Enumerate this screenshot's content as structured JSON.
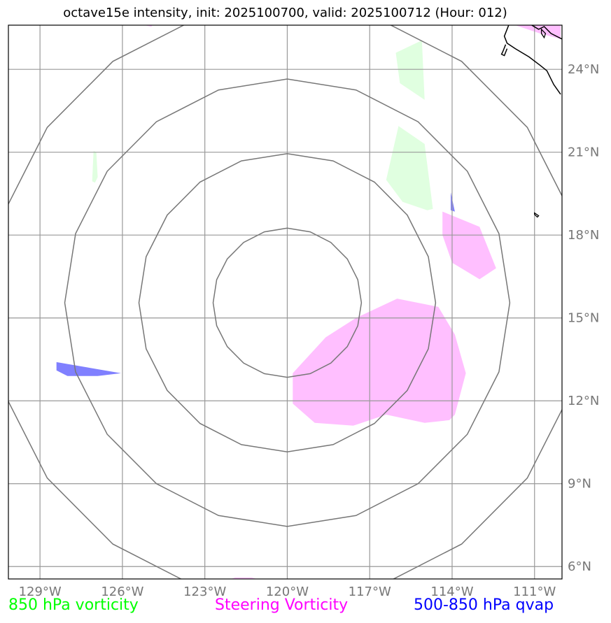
{
  "title": "octave15e intensity, init: 2025100700, valid: 2025100712 (Hour: 012)",
  "legend": {
    "vorticity_850": {
      "label": "850 hPa vorticity",
      "color": "#00ff00"
    },
    "steering": {
      "label": "Steering Vorticity",
      "color": "#ff00ff"
    },
    "qvap": {
      "label": "500-850 hPa qvap",
      "color": "#0000ff"
    }
  },
  "chart_data": {
    "type": "map",
    "projection": "PlateCarree",
    "extent": {
      "lon": [
        -130.15,
        -110.0
      ],
      "lat": [
        5.55,
        25.6
      ]
    },
    "x_ticks": [
      -129,
      -126,
      -123,
      -120,
      -117,
      -114,
      -111
    ],
    "x_tick_labels": [
      "129°W",
      "126°W",
      "123°W",
      "120°W",
      "117°W",
      "114°W",
      "111°W"
    ],
    "y_ticks": [
      6,
      9,
      12,
      15,
      18,
      21,
      24
    ],
    "y_tick_labels": [
      "6°N",
      "9°N",
      "12°N",
      "15°N",
      "18°N",
      "21°N",
      "24°N"
    ],
    "grid": true,
    "colors": {
      "grid": "#999999",
      "tick_label": "#777777",
      "range_ring": "#777777",
      "coast": "#000000",
      "vort850_fill": "#e0ffe0",
      "steering_fill": "#ffbfff",
      "qvap_fill": "#8080ff"
    },
    "storm_center": {
      "lon": -120.0,
      "lat": 15.55
    },
    "range_rings": [
      {
        "radius_deg": 2.7
      },
      {
        "radius_deg": 5.4
      },
      {
        "radius_deg": 8.1
      },
      {
        "radius_deg": 10.8
      }
    ],
    "vort850_regions": [
      [
        [
          -115.1,
          25.05
        ],
        [
          -116.05,
          24.6
        ],
        [
          -115.9,
          23.5
        ],
        [
          -115.0,
          22.9
        ],
        [
          -115.1,
          25.05
        ]
      ],
      [
        [
          -126.9,
          20.1
        ],
        [
          -127.0,
          19.9
        ],
        [
          -127.1,
          19.95
        ],
        [
          -127.05,
          21.05
        ],
        [
          -126.95,
          21.0
        ],
        [
          -126.9,
          20.1
        ]
      ],
      [
        [
          -115.95,
          21.95
        ],
        [
          -116.4,
          20.0
        ],
        [
          -115.8,
          19.2
        ],
        [
          -114.9,
          18.9
        ],
        [
          -114.7,
          18.95
        ],
        [
          -115.0,
          21.3
        ],
        [
          -115.95,
          21.95
        ]
      ]
    ],
    "steering_regions": [
      [
        [
          -114.35,
          18.85
        ],
        [
          -113.0,
          18.3
        ],
        [
          -112.4,
          16.8
        ],
        [
          -113.0,
          16.4
        ],
        [
          -114.0,
          17.0
        ],
        [
          -114.35,
          18.0
        ],
        [
          -114.35,
          18.85
        ]
      ],
      [
        [
          -116.0,
          15.7
        ],
        [
          -114.5,
          15.4
        ],
        [
          -113.9,
          14.4
        ],
        [
          -113.5,
          13.0
        ],
        [
          -113.9,
          11.5
        ],
        [
          -114.1,
          11.3
        ],
        [
          -115.0,
          11.2
        ],
        [
          -116.4,
          11.5
        ],
        [
          -117.6,
          11.1
        ],
        [
          -119.0,
          11.2
        ],
        [
          -119.8,
          11.9
        ],
        [
          -119.8,
          13.0
        ],
        [
          -118.6,
          14.3
        ],
        [
          -117.5,
          15.0
        ],
        [
          -116.0,
          15.7
        ]
      ],
      [
        [
          -125.2,
          25.6
        ],
        [
          -124.9,
          25.6
        ],
        [
          -124.95,
          25.55
        ],
        [
          -125.2,
          25.6
        ]
      ],
      [
        [
          -111.7,
          25.6
        ],
        [
          -110.05,
          25.6
        ],
        [
          -110.05,
          25.1
        ],
        [
          -110.8,
          25.3
        ],
        [
          -111.7,
          25.6
        ]
      ],
      [
        [
          -122.05,
          5.55
        ],
        [
          -121.1,
          5.55
        ],
        [
          -121.3,
          5.6
        ],
        [
          -121.9,
          5.6
        ],
        [
          -122.05,
          5.55
        ]
      ]
    ],
    "qvap_regions": [
      [
        [
          -128.4,
          13.4
        ],
        [
          -126.05,
          13.0
        ],
        [
          -126.9,
          12.9
        ],
        [
          -128.0,
          12.9
        ],
        [
          -128.4,
          13.1
        ],
        [
          -128.4,
          13.4
        ]
      ],
      [
        [
          -114.05,
          19.55
        ],
        [
          -113.9,
          18.85
        ],
        [
          -114.05,
          18.9
        ],
        [
          -114.05,
          19.55
        ]
      ]
    ],
    "coastlines": [
      [
        [
          -110.0,
          25.1
        ],
        [
          -110.4,
          25.3
        ],
        [
          -110.65,
          25.55
        ],
        [
          -110.85,
          25.45
        ],
        [
          -111.1,
          25.6
        ],
        [
          -111.3,
          25.7
        ]
      ],
      [
        [
          -110.05,
          23.1
        ],
        [
          -110.3,
          23.45
        ],
        [
          -110.55,
          23.95
        ],
        [
          -110.8,
          24.15
        ],
        [
          -111.2,
          24.45
        ],
        [
          -111.45,
          24.6
        ],
        [
          -111.7,
          24.75
        ],
        [
          -112.0,
          24.95
        ],
        [
          -112.1,
          25.2
        ],
        [
          -112.0,
          25.45
        ],
        [
          -111.9,
          25.7
        ]
      ],
      [
        [
          -112.05,
          24.9
        ],
        [
          -112.15,
          24.65
        ],
        [
          -112.2,
          24.55
        ],
        [
          -112.1,
          24.5
        ],
        [
          -112.0,
          24.75
        ]
      ]
    ],
    "islands": [
      [
        [
          -111.0,
          18.8
        ],
        [
          -110.85,
          18.7
        ],
        [
          -110.9,
          18.65
        ],
        [
          -111.0,
          18.75
        ],
        [
          -111.0,
          18.8
        ]
      ],
      [
        [
          -110.75,
          25.45
        ],
        [
          -110.6,
          25.3
        ],
        [
          -110.65,
          25.15
        ],
        [
          -110.75,
          25.3
        ],
        [
          -110.75,
          25.45
        ]
      ]
    ]
  }
}
